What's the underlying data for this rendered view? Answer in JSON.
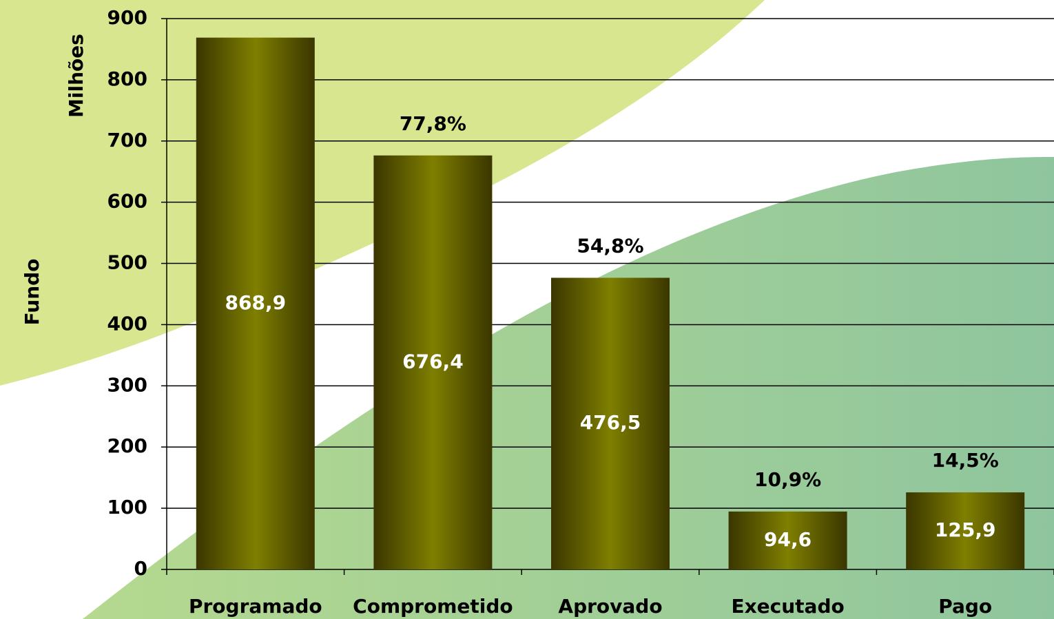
{
  "chart_data": {
    "type": "bar",
    "y_label": "Milhões",
    "x_label": "Fundo",
    "categories": [
      "Programado",
      "Comprometido",
      "Aprovado",
      "Executado",
      "Pago"
    ],
    "values": [
      868.9,
      676.4,
      476.5,
      94.6,
      125.9
    ],
    "value_labels": [
      "868,9",
      "676,4",
      "476,5",
      "94,6",
      "125,9"
    ],
    "percent_values": [
      null,
      77.8,
      54.8,
      10.9,
      14.5
    ],
    "percent_labels": [
      null,
      "77,8%",
      "54,8%",
      "10,9%",
      "14,5%"
    ],
    "color": "#7f7f00",
    "edge_color": "#3a3600",
    "ylim": [
      0,
      900
    ],
    "yticks": [
      0,
      100,
      200,
      300,
      400,
      500,
      600,
      700,
      800,
      900
    ],
    "grid": true
  }
}
